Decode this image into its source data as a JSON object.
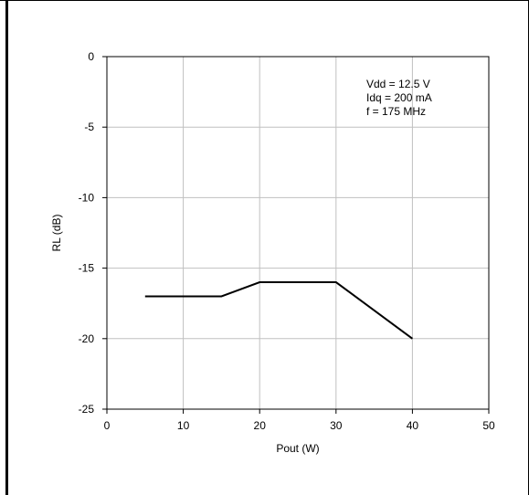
{
  "chart_data": {
    "type": "line",
    "xlabel": "Pout (W)",
    "ylabel": "RL (dB)",
    "xlim": [
      0,
      50
    ],
    "ylim": [
      -25,
      0
    ],
    "xticks": [
      0,
      10,
      20,
      30,
      40,
      50
    ],
    "yticks": [
      0,
      -5,
      -10,
      -15,
      -20,
      -25
    ],
    "grid": true,
    "series": [
      {
        "x": [
          5,
          15,
          20,
          30,
          40
        ],
        "values": [
          -17,
          -17,
          -16,
          -16,
          -20
        ]
      }
    ],
    "annotations": [
      "Vdd = 12.5 V",
      "Idq = 200 mA",
      "f = 175 MHz"
    ],
    "colors": {
      "line": "#000000",
      "grid": "#c0c0c0",
      "axis": "#000000"
    }
  }
}
